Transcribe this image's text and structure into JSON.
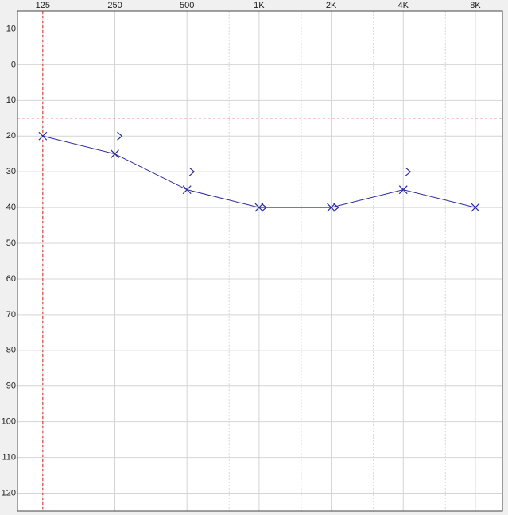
{
  "chart_data": {
    "type": "audiogram",
    "x_scale": "log",
    "y_inverted": true,
    "grid": true,
    "xlim": [
      98,
      10380
    ],
    "ylim": [
      -15,
      125
    ],
    "xticks": [
      125,
      250,
      500,
      {
        "value": 1000,
        "label": "1K"
      },
      {
        "value": 2000,
        "label": "2K"
      },
      {
        "value": 4000,
        "label": "4K"
      },
      {
        "value": 8000,
        "label": "8K"
      }
    ],
    "minor_xticks": [
      750,
      1500,
      3000,
      6000
    ],
    "yticks": [
      -10,
      0,
      10,
      20,
      30,
      40,
      50,
      60,
      70,
      80,
      90,
      100,
      110,
      120
    ],
    "series": [
      {
        "marker": "x",
        "line": true,
        "color": "#2b2b9c",
        "x": [
          125,
          250,
          500,
          1000,
          2000,
          4000,
          8000
        ],
        "values": [
          20,
          25,
          35,
          40,
          40,
          35,
          40
        ]
      },
      {
        "marker": ">",
        "line": false,
        "color": "#2b2b9c",
        "x": [
          250,
          500,
          1000,
          2000,
          4000
        ],
        "values": [
          20,
          30,
          40,
          40,
          30
        ]
      }
    ],
    "cursor": {
      "x": 125,
      "y": 15,
      "color": "#e02424"
    }
  }
}
